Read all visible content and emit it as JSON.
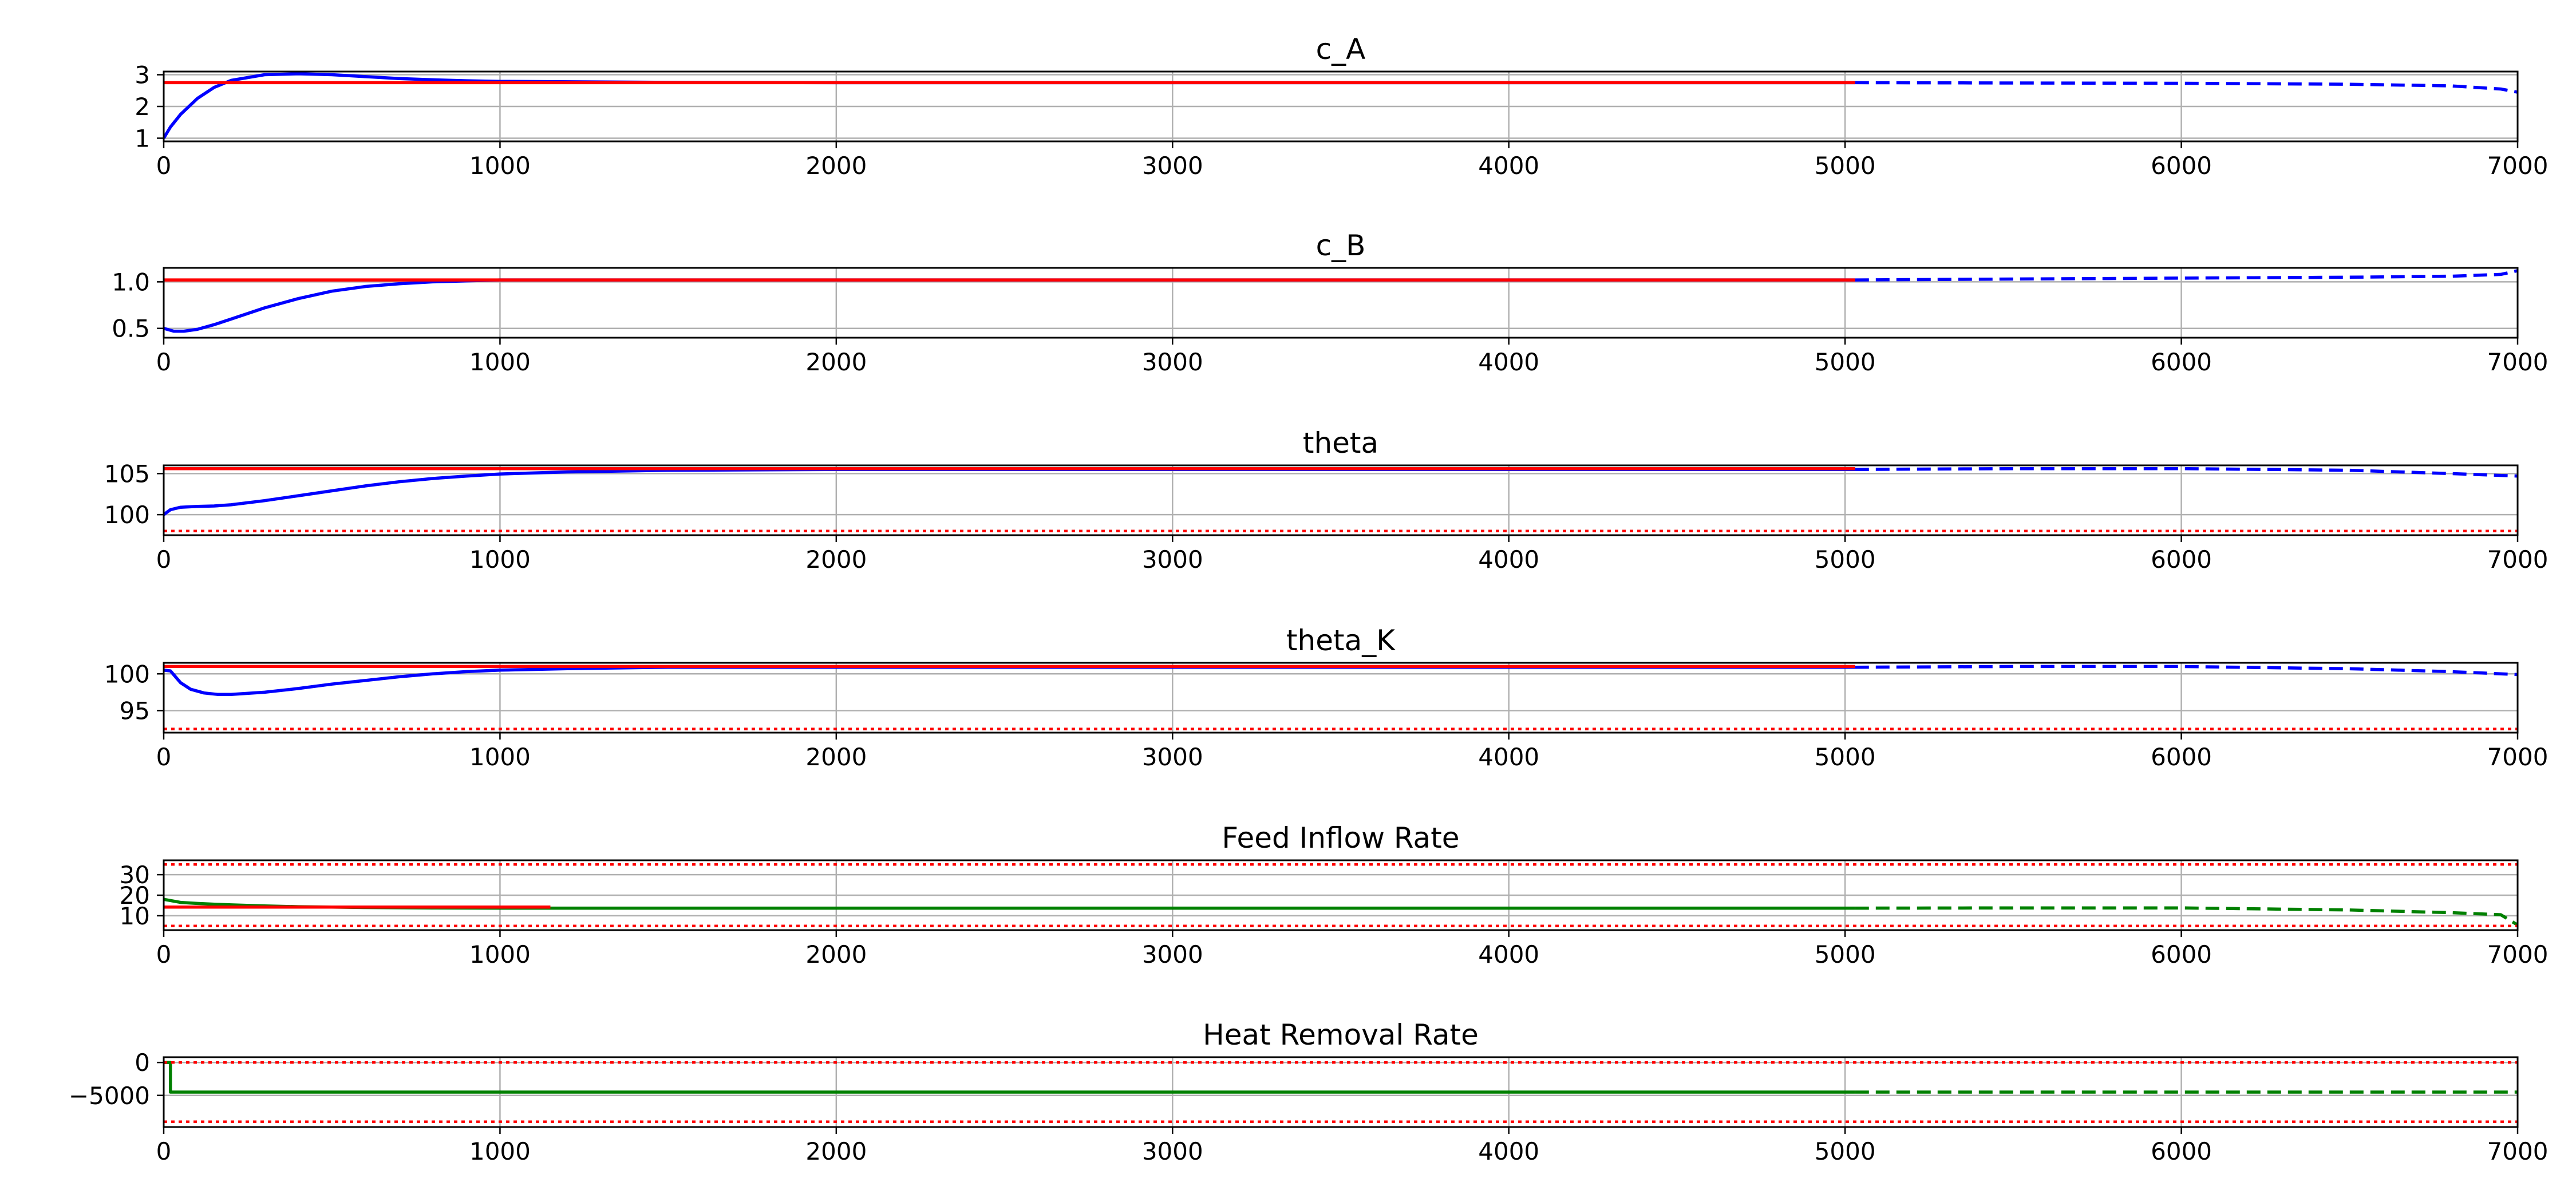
{
  "chart_data": [
    {
      "type": "line",
      "title": "c_A",
      "xlim": [
        0,
        7000
      ],
      "ylim": [
        0.9,
        3.1
      ],
      "x_ticks": [
        0,
        1000,
        2000,
        3000,
        4000,
        5000,
        6000,
        7000
      ],
      "y_ticks": [
        1,
        2,
        3
      ],
      "y_tick_labels": [
        "1",
        "2",
        "3"
      ],
      "grid": true,
      "series": [
        {
          "style": "solid",
          "color": "#0000ff",
          "x": [
            0,
            20,
            50,
            100,
            150,
            200,
            300,
            400,
            500,
            600,
            700,
            800,
            900,
            1000,
            1500,
            2000,
            3000,
            4000,
            5030
          ],
          "y": [
            1.0,
            1.35,
            1.75,
            2.25,
            2.6,
            2.82,
            3.0,
            3.03,
            3.0,
            2.94,
            2.88,
            2.84,
            2.81,
            2.79,
            2.76,
            2.75,
            2.75,
            2.75,
            2.75
          ]
        },
        {
          "style": "dashed",
          "color": "#0000ff",
          "x": [
            5030,
            5500,
            6000,
            6500,
            6800,
            6950,
            7000
          ],
          "y": [
            2.75,
            2.74,
            2.73,
            2.7,
            2.65,
            2.55,
            2.45
          ]
        },
        {
          "style": "solid",
          "color": "#ff0000",
          "x": [
            0,
            5030
          ],
          "y": [
            2.75,
            2.75
          ]
        }
      ]
    },
    {
      "type": "line",
      "title": "c_B",
      "xlim": [
        0,
        7000
      ],
      "ylim": [
        0.4,
        1.15
      ],
      "x_ticks": [
        0,
        1000,
        2000,
        3000,
        4000,
        5000,
        6000,
        7000
      ],
      "y_ticks": [
        0.5,
        1.0
      ],
      "y_tick_labels": [
        "0.5",
        "1.0"
      ],
      "grid": true,
      "series": [
        {
          "style": "solid",
          "color": "#0000ff",
          "x": [
            0,
            30,
            60,
            100,
            150,
            200,
            300,
            400,
            500,
            600,
            700,
            800,
            900,
            1000,
            1500,
            2000,
            5030
          ],
          "y": [
            0.5,
            0.47,
            0.47,
            0.49,
            0.54,
            0.6,
            0.72,
            0.82,
            0.9,
            0.95,
            0.98,
            1.0,
            1.01,
            1.02,
            1.02,
            1.02,
            1.02
          ]
        },
        {
          "style": "dashed",
          "color": "#0000ff",
          "x": [
            5030,
            5500,
            6000,
            6500,
            6800,
            6950,
            7000
          ],
          "y": [
            1.02,
            1.03,
            1.04,
            1.05,
            1.06,
            1.08,
            1.12
          ]
        },
        {
          "style": "solid",
          "color": "#ff0000",
          "x": [
            0,
            5030
          ],
          "y": [
            1.02,
            1.02
          ]
        }
      ]
    },
    {
      "type": "line",
      "title": "theta",
      "xlim": [
        0,
        7000
      ],
      "ylim": [
        97.5,
        106.0
      ],
      "x_ticks": [
        0,
        1000,
        2000,
        3000,
        4000,
        5000,
        6000,
        7000
      ],
      "y_ticks": [
        100,
        105
      ],
      "y_tick_labels": [
        "100",
        "105"
      ],
      "grid": true,
      "series": [
        {
          "style": "solid",
          "color": "#0000ff",
          "x": [
            0,
            20,
            50,
            100,
            150,
            200,
            300,
            400,
            500,
            600,
            700,
            800,
            900,
            1000,
            1200,
            1500,
            2000,
            3000,
            5030
          ],
          "y": [
            100.0,
            100.6,
            100.9,
            101.0,
            101.05,
            101.2,
            101.7,
            102.3,
            102.9,
            103.5,
            104.0,
            104.4,
            104.7,
            104.95,
            105.2,
            105.4,
            105.5,
            105.5,
            105.5
          ]
        },
        {
          "style": "dashed",
          "color": "#0000ff",
          "x": [
            5030,
            5500,
            6000,
            6500,
            6800,
            7000
          ],
          "y": [
            105.5,
            105.6,
            105.6,
            105.4,
            105.0,
            104.7
          ]
        },
        {
          "style": "solid",
          "color": "#ff0000",
          "x": [
            0,
            5030
          ],
          "y": [
            105.6,
            105.6
          ]
        },
        {
          "style": "dotted",
          "color": "#ff0000",
          "x": [
            0,
            7000
          ],
          "y": [
            98.0,
            98.0
          ]
        }
      ]
    },
    {
      "type": "line",
      "title": "theta_K",
      "xlim": [
        0,
        7000
      ],
      "ylim": [
        92.0,
        101.5
      ],
      "x_ticks": [
        0,
        1000,
        2000,
        3000,
        4000,
        5000,
        6000,
        7000
      ],
      "y_ticks": [
        95,
        100
      ],
      "y_tick_labels": [
        "95",
        "100"
      ],
      "grid": true,
      "series": [
        {
          "style": "solid",
          "color": "#0000ff",
          "x": [
            0,
            20,
            50,
            80,
            120,
            160,
            200,
            300,
            400,
            500,
            600,
            700,
            800,
            900,
            1000,
            1200,
            1500,
            2000,
            5030
          ],
          "y": [
            100.5,
            100.4,
            98.8,
            97.9,
            97.4,
            97.2,
            97.2,
            97.5,
            98.0,
            98.6,
            99.1,
            99.6,
            100.0,
            100.3,
            100.5,
            100.7,
            100.9,
            100.9,
            100.9
          ]
        },
        {
          "style": "dashed",
          "color": "#0000ff",
          "x": [
            5030,
            5500,
            6000,
            6500,
            6800,
            7000
          ],
          "y": [
            100.9,
            101.0,
            101.0,
            100.7,
            100.3,
            99.9
          ]
        },
        {
          "style": "solid",
          "color": "#ff0000",
          "x": [
            0,
            5030
          ],
          "y": [
            101.0,
            101.0
          ]
        },
        {
          "style": "dotted",
          "color": "#ff0000",
          "x": [
            0,
            7000
          ],
          "y": [
            92.5,
            92.5
          ]
        }
      ]
    },
    {
      "type": "line",
      "title": "Feed Inflow Rate",
      "xlim": [
        0,
        7000
      ],
      "ylim": [
        3.0,
        37.0
      ],
      "x_ticks": [
        0,
        1000,
        2000,
        3000,
        4000,
        5000,
        6000,
        7000
      ],
      "y_ticks": [
        10,
        20,
        30
      ],
      "y_tick_labels": [
        "10",
        "20",
        "30"
      ],
      "grid": true,
      "series": [
        {
          "style": "solid",
          "color": "#008000",
          "x": [
            0,
            50,
            100,
            150,
            200,
            300,
            400,
            500,
            600,
            700,
            800,
            1000,
            1200,
            2000,
            5030
          ],
          "y": [
            18.0,
            16.5,
            16.0,
            15.6,
            15.3,
            14.8,
            14.4,
            14.2,
            14.0,
            13.9,
            13.8,
            13.7,
            13.7,
            13.7,
            13.7
          ]
        },
        {
          "style": "dashed",
          "color": "#008000",
          "x": [
            5030,
            5500,
            6000,
            6500,
            6800,
            6950,
            7000
          ],
          "y": [
            13.7,
            13.8,
            13.8,
            12.8,
            11.5,
            10.5,
            5.5
          ]
        },
        {
          "style": "solid",
          "color": "#ff0000",
          "x": [
            0,
            1150
          ],
          "y": [
            14.2,
            14.2
          ]
        },
        {
          "style": "dotted",
          "color": "#ff0000",
          "x": [
            0,
            7000
          ],
          "y": [
            35.0,
            35.0
          ]
        },
        {
          "style": "dotted",
          "color": "#ff0000",
          "x": [
            0,
            7000
          ],
          "y": [
            5.0,
            5.0
          ]
        }
      ]
    },
    {
      "type": "line",
      "title": "Heat Removal Rate",
      "xlim": [
        0,
        7000
      ],
      "ylim": [
        -9800,
        800
      ],
      "x_ticks": [
        0,
        1000,
        2000,
        3000,
        4000,
        5000,
        6000,
        7000
      ],
      "y_ticks": [
        -5000,
        0
      ],
      "y_tick_labels": [
        "−5000",
        "0"
      ],
      "grid": true,
      "series": [
        {
          "style": "solid",
          "color": "#008000",
          "x": [
            0,
            20,
            20,
            5030
          ],
          "y": [
            0,
            0,
            -4500,
            -4500
          ]
        },
        {
          "style": "dashed",
          "color": "#008000",
          "x": [
            5030,
            7000
          ],
          "y": [
            -4500,
            -4500
          ]
        },
        {
          "style": "dotted",
          "color": "#ff0000",
          "x": [
            0,
            7000
          ],
          "y": [
            0,
            0
          ]
        },
        {
          "style": "dotted",
          "color": "#ff0000",
          "x": [
            0,
            7000
          ],
          "y": [
            -9000,
            -9000
          ]
        }
      ]
    }
  ]
}
